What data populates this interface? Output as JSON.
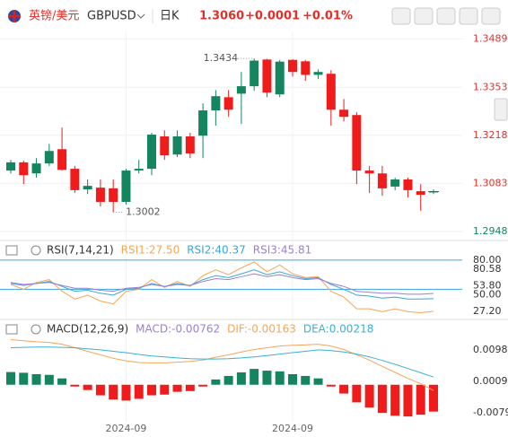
{
  "header": {
    "name": "英镑/美元",
    "symbol": "GBPUSD",
    "period": "日K",
    "price": "1.3060",
    "change": "+0.0001",
    "change_pct": "+0.01%"
  },
  "chart_data": [
    {
      "type": "candlestick",
      "categories": [
        null,
        null,
        null,
        null,
        null,
        null,
        null,
        null,
        null,
        "2024-09",
        null,
        null,
        null,
        null,
        null,
        null,
        null,
        null,
        null,
        null,
        null,
        null,
        "2024-09",
        null,
        null,
        null,
        null,
        null,
        null,
        null,
        null,
        null,
        null,
        null
      ],
      "open": [
        1.3119,
        1.3142,
        1.3111,
        1.3139,
        1.3179,
        1.3124,
        1.3066,
        1.3071,
        1.3069,
        1.3031,
        1.3119,
        1.3124,
        1.3215,
        1.3164,
        1.3215,
        1.3217,
        1.3288,
        1.3325,
        1.3335,
        1.3356,
        1.3431,
        1.3333,
        1.343,
        1.3426,
        1.3388,
        1.3391,
        1.329,
        1.3275,
        1.3119,
        1.3111,
        1.3074,
        1.3094,
        1.3061,
        1.3059
      ],
      "high": [
        1.3149,
        1.3147,
        1.3154,
        1.3194,
        1.324,
        1.3132,
        1.3094,
        1.3094,
        1.3094,
        1.3124,
        1.3149,
        1.3225,
        1.3232,
        1.3232,
        1.3225,
        1.3308,
        1.3345,
        1.3345,
        1.3396,
        1.3434,
        1.3433,
        1.343,
        1.3432,
        1.343,
        1.3403,
        1.3401,
        1.332,
        1.3283,
        1.3132,
        1.3132,
        1.3099,
        1.3099,
        1.3081,
        1.3066
      ],
      "low": [
        1.3111,
        1.3081,
        1.3099,
        1.3132,
        1.3119,
        1.3056,
        1.3053,
        1.3018,
        1.3002,
        1.3023,
        1.3111,
        1.3106,
        1.3149,
        1.3157,
        1.3154,
        1.3154,
        1.3245,
        1.327,
        1.325,
        1.3343,
        1.3325,
        1.3325,
        1.3383,
        1.3371,
        1.3376,
        1.3245,
        1.3257,
        1.3081,
        1.3056,
        1.3048,
        1.3064,
        1.3043,
        1.3006,
        1.3053
      ],
      "close": [
        1.3142,
        1.3106,
        1.3139,
        1.3174,
        1.3121,
        1.3064,
        1.3076,
        1.3031,
        1.3031,
        1.3119,
        1.3124,
        1.322,
        1.3162,
        1.3215,
        1.3167,
        1.3288,
        1.3328,
        1.329,
        1.3356,
        1.3428,
        1.3338,
        1.3425,
        1.3396,
        1.3388,
        1.3396,
        1.329,
        1.327,
        1.3119,
        1.3111,
        1.3069,
        1.3094,
        1.3064,
        1.3051,
        1.306
      ],
      "up_color": "#14855f",
      "down_color": "#f01c1c",
      "ylim": [
        1.292,
        1.351
      ],
      "yticks": [
        1.3489,
        1.3353,
        1.3218,
        1.3083,
        1.2948
      ],
      "grid": true,
      "max_label": 1.3434,
      "min_label": 1.3002
    },
    {
      "type": "line",
      "title": "RSI(7,14,21)",
      "ylim": [
        20,
        90
      ],
      "yticks": [
        {
          "value": 80,
          "label": "80.00"
        },
        80.58,
        {
          "value": 53.8,
          "label": "53.80"
        },
        {
          "value": 50,
          "label": "50.00"
        },
        {
          "value": 27.2,
          "label": "27.20"
        }
      ],
      "reference_lines": [
        80,
        50
      ],
      "series": [
        {
          "name": "RSI1:27.50",
          "color": "#f5a55a",
          "values": [
            55,
            50,
            57,
            60,
            48,
            40,
            44,
            38,
            35,
            48,
            50,
            60,
            52,
            58,
            53,
            64,
            70,
            65,
            72,
            78,
            68,
            75,
            66,
            62,
            63,
            48,
            42,
            30,
            30,
            27,
            30,
            27,
            26,
            27.5
          ]
        },
        {
          "name": "RSI2:40.37",
          "color": "#3aa6d8",
          "values": [
            56,
            54,
            56,
            58,
            53,
            48,
            49,
            46,
            44,
            50,
            51,
            56,
            53,
            56,
            54,
            60,
            64,
            62,
            66,
            70,
            65,
            68,
            64,
            61,
            62,
            55,
            50,
            44,
            43,
            41,
            42,
            40,
            40,
            40.37
          ]
        },
        {
          "name": "RSI3:45.81",
          "color": "#9b7fd4",
          "values": [
            57,
            55,
            56,
            57,
            54,
            51,
            51,
            49,
            48,
            51,
            52,
            55,
            53,
            55,
            54,
            58,
            61,
            60,
            63,
            66,
            63,
            65,
            62,
            60,
            61,
            56,
            53,
            48,
            47,
            46,
            46,
            45,
            45,
            45.81
          ]
        }
      ]
    },
    {
      "type": "macd",
      "title": "MACD(12,26,9)",
      "ylim": [
        -0.0105,
        0.017
      ],
      "yticks": [
        0.00986,
        0.00094,
        -0.00798
      ],
      "up_color": "#14855f",
      "down_color": "#f01c1c",
      "bars": {
        "name": "MACD:-0.00762",
        "color": "#9b7fd4",
        "values": [
          0.0036,
          0.0034,
          0.003,
          0.0028,
          0.0018,
          -0.0005,
          -0.0015,
          -0.003,
          -0.0042,
          -0.0045,
          -0.004,
          -0.003,
          -0.0028,
          -0.002,
          -0.0018,
          -0.0005,
          0.0015,
          0.0025,
          0.0035,
          0.0045,
          0.004,
          0.0038,
          0.003,
          0.0025,
          0.0018,
          -0.0005,
          -0.0025,
          -0.005,
          -0.0065,
          -0.008,
          -0.0088,
          -0.009,
          -0.0085,
          -0.00762
        ]
      },
      "series": [
        {
          "name": "DIF:-0.00163",
          "color": "#f5a55a",
          "values": [
            0.0128,
            0.0125,
            0.0122,
            0.012,
            0.0115,
            0.0105,
            0.0095,
            0.0085,
            0.0075,
            0.0068,
            0.0063,
            0.0062,
            0.0062,
            0.0064,
            0.0066,
            0.007,
            0.0078,
            0.0085,
            0.0093,
            0.01,
            0.0105,
            0.011,
            0.0112,
            0.0113,
            0.0115,
            0.011,
            0.01,
            0.0085,
            0.007,
            0.0052,
            0.0035,
            0.0018,
            0.0003,
            -0.00163
          ]
        },
        {
          "name": "DEA:0.00218",
          "color": "#3ab0d8",
          "values": [
            0.0105,
            0.0106,
            0.0107,
            0.0107,
            0.0106,
            0.0105,
            0.0102,
            0.0099,
            0.0095,
            0.0091,
            0.0086,
            0.0082,
            0.0079,
            0.0076,
            0.0074,
            0.0073,
            0.0073,
            0.0074,
            0.0076,
            0.0079,
            0.0083,
            0.0087,
            0.0091,
            0.0095,
            0.0099,
            0.0097,
            0.0093,
            0.0087,
            0.0079,
            0.0069,
            0.0058,
            0.0046,
            0.0034,
            0.00218
          ]
        }
      ]
    }
  ]
}
